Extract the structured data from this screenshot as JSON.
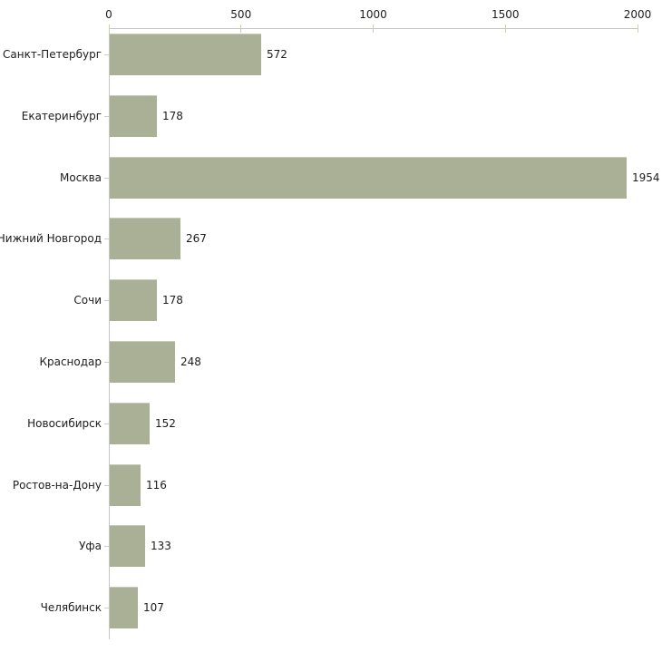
{
  "chart_data": {
    "type": "bar",
    "orientation": "horizontal",
    "title": "",
    "xlabel": "",
    "ylabel": "",
    "grid": false,
    "legend": "none",
    "axis_position": "top",
    "categories": [
      "Санкт-Петербург",
      "Екатеринбург",
      "Москва",
      "Нижний Новгород",
      "Сочи",
      "Краснодар",
      "Новосибирск",
      "Ростов-на-Дону",
      "Уфа",
      "Челябинск"
    ],
    "values": [
      572,
      178,
      1954,
      267,
      178,
      248,
      152,
      116,
      133,
      107
    ],
    "value_labels": [
      "572",
      "178",
      "1954",
      "267",
      "178",
      "248",
      "152",
      "116",
      "133",
      "107"
    ],
    "x_ticks": [
      0,
      500,
      1000,
      1500,
      2000
    ],
    "x_tick_labels": [
      "0",
      "500",
      "1000",
      "1500",
      "2000"
    ],
    "xlim": [
      0,
      2000
    ],
    "colors": {
      "background": "#ffffff",
      "bar_fill": "#aab095",
      "axis_line": "#c6c6c6",
      "tick_mark": "#cdd1ae",
      "label_text": "#1c1c1c"
    }
  }
}
